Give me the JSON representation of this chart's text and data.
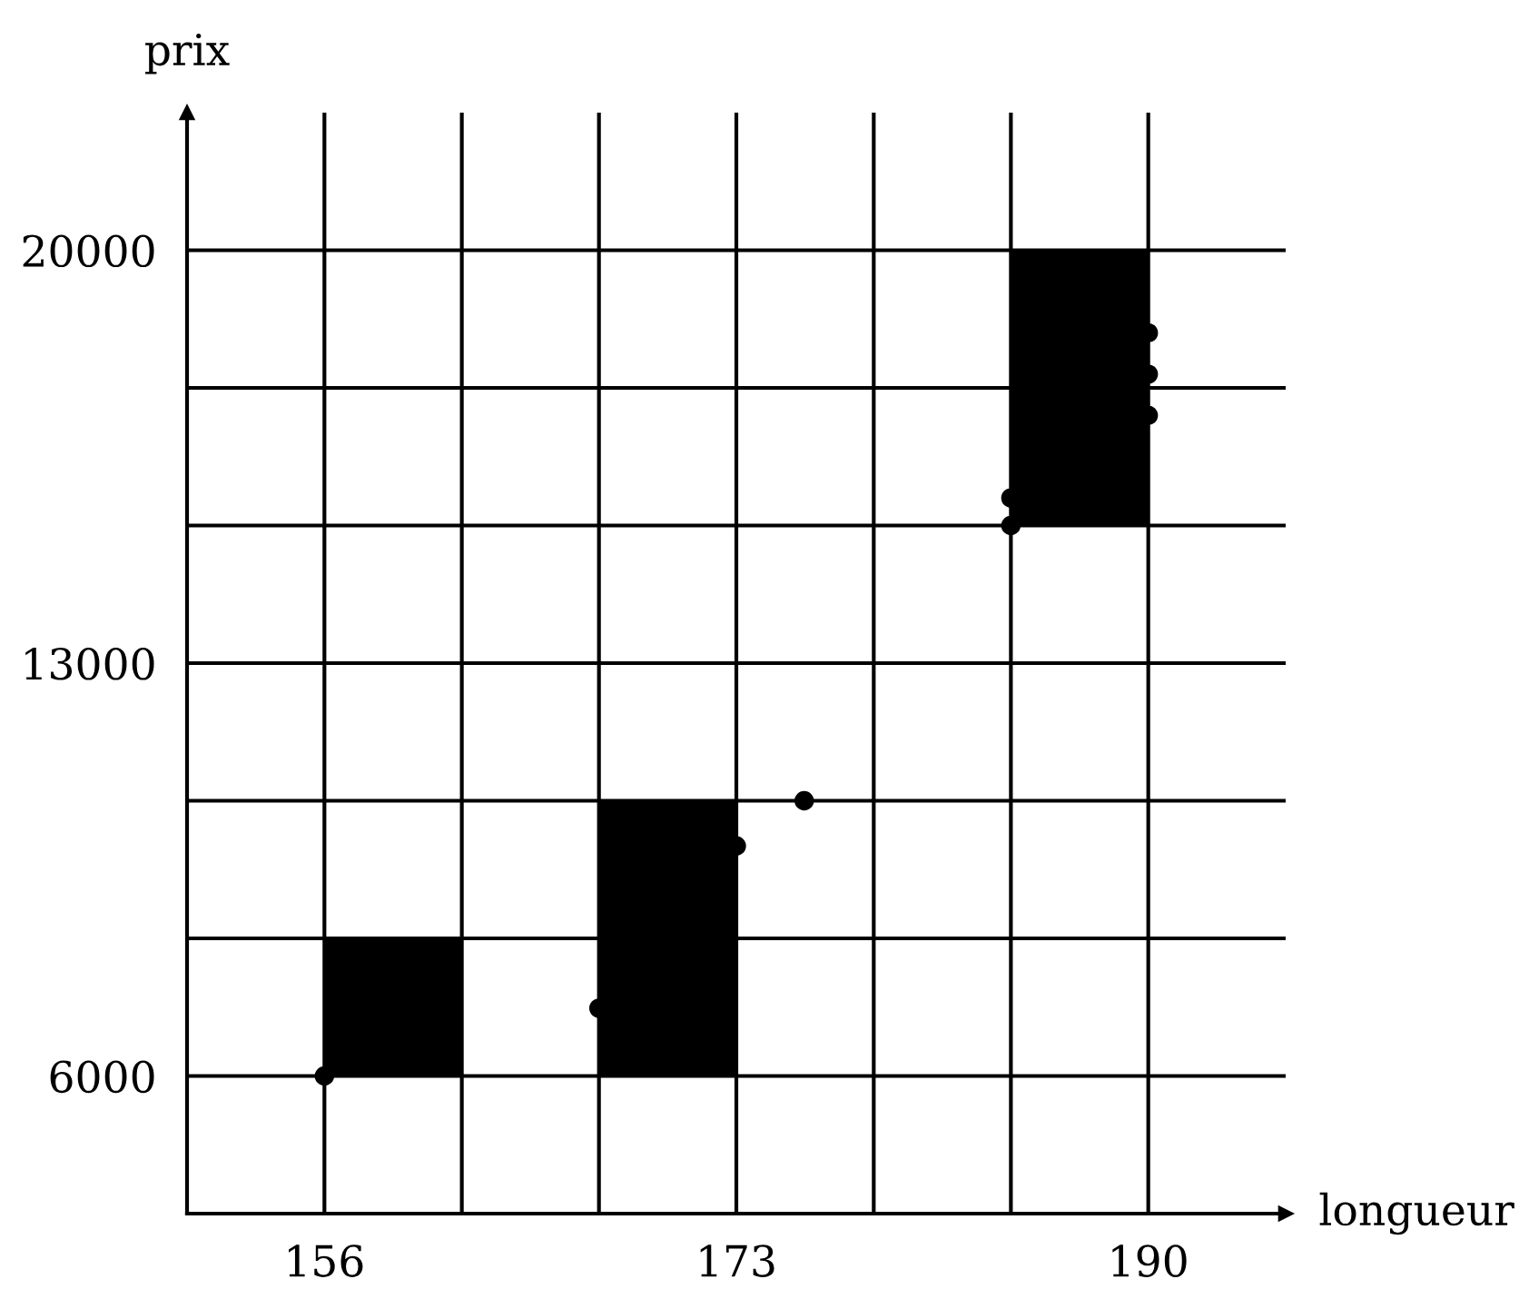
{
  "chart_data": {
    "type": "scatter",
    "xlabel": "longueur",
    "ylabel": "prix",
    "xlim": [
      150.33,
      195.67
    ],
    "ylim": [
      3667,
      22333
    ],
    "xticks": [
      156,
      {
        "value": 161.67,
        "label": null
      },
      {
        "value": 167.33,
        "label": null
      },
      173,
      {
        "value": 178.67,
        "label": null
      },
      {
        "value": 184.33,
        "label": null
      },
      190
    ],
    "yticks": [
      6000,
      {
        "value": 8333,
        "label": null
      },
      {
        "value": 10667,
        "label": null
      },
      13000,
      {
        "value": 15333,
        "label": null
      },
      {
        "value": 17667,
        "label": null
      },
      20000
    ],
    "grid": true,
    "marker": "circle",
    "series": [
      {
        "type": "bar",
        "color": "#000000",
        "x": [
          158.83,
          170.17,
          187.17
        ],
        "base": [
          6000,
          6000,
          15333
        ],
        "values": [
          2333,
          4667,
          4667
        ]
      },
      {
        "color": "#000000",
        "x": [
          156,
          167.33,
          173,
          175.8,
          184.33,
          184.33,
          190,
          190,
          190
        ],
        "values": [
          6000,
          7150,
          9900,
          10667,
          15333,
          15800,
          18600,
          17900,
          17200
        ]
      }
    ]
  }
}
